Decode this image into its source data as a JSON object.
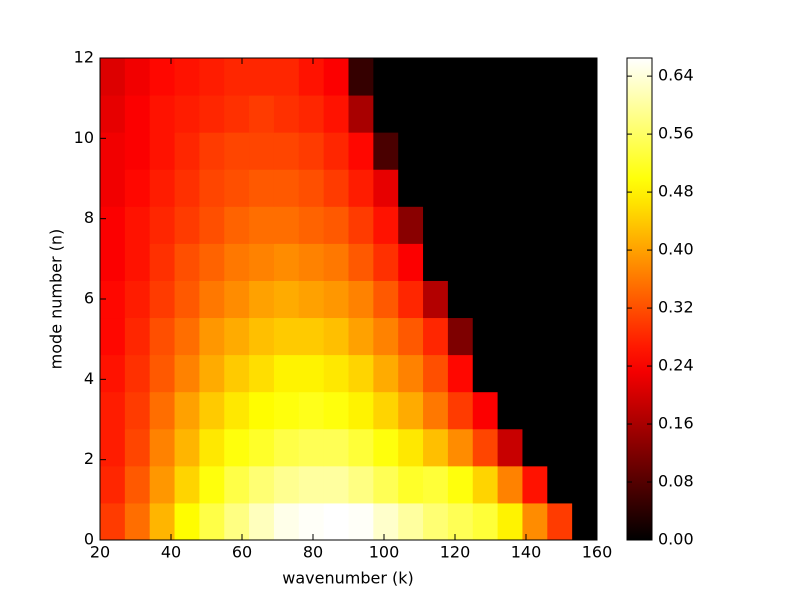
{
  "chart_data": {
    "type": "heatmap",
    "xlabel": "wavenumber (k)",
    "ylabel": "mode number (n)",
    "xlim": [
      20,
      160
    ],
    "ylim": [
      0,
      12
    ],
    "xticks": [
      20,
      40,
      60,
      80,
      100,
      120,
      140,
      160
    ],
    "yticks": [
      0,
      2,
      4,
      6,
      8,
      10,
      12
    ],
    "colormap": "hot",
    "clim": [
      0,
      0.665
    ],
    "cticks": [
      {
        "value": 0,
        "label": "0.00"
      },
      {
        "value": 0.08,
        "label": "0.08"
      },
      {
        "value": 0.16,
        "label": "0.16"
      },
      {
        "value": 0.24,
        "label": "0.24"
      },
      {
        "value": 0.32,
        "label": "0.32"
      },
      {
        "value": 0.4,
        "label": "0.40"
      },
      {
        "value": 0.48,
        "label": "0.48"
      },
      {
        "value": 0.56,
        "label": "0.56"
      },
      {
        "value": 0.64,
        "label": "0.64"
      }
    ],
    "z": [
      [
        0.3,
        0.35,
        0.42,
        0.49,
        0.54,
        0.58,
        0.62,
        0.65,
        0.66,
        0.67,
        0.66,
        0.63,
        0.6,
        0.57,
        0.55,
        0.53,
        0.48,
        0.38,
        0.3,
        0
      ],
      [
        0.28,
        0.33,
        0.39,
        0.45,
        0.5,
        0.54,
        0.57,
        0.59,
        0.6,
        0.6,
        0.58,
        0.55,
        0.52,
        0.53,
        0.5,
        0.45,
        0.37,
        0.26,
        0,
        0
      ],
      [
        0.27,
        0.31,
        0.37,
        0.42,
        0.47,
        0.5,
        0.52,
        0.54,
        0.55,
        0.55,
        0.53,
        0.5,
        0.47,
        0.43,
        0.38,
        0.31,
        0.19,
        0,
        0,
        0
      ],
      [
        0.27,
        0.3,
        0.35,
        0.4,
        0.44,
        0.47,
        0.49,
        0.5,
        0.51,
        0.5,
        0.48,
        0.45,
        0.41,
        0.36,
        0.3,
        0.24,
        0,
        0,
        0,
        0
      ],
      [
        0.26,
        0.29,
        0.33,
        0.37,
        0.41,
        0.44,
        0.46,
        0.48,
        0.48,
        0.47,
        0.45,
        0.41,
        0.37,
        0.32,
        0.25,
        0,
        0,
        0,
        0,
        0
      ],
      [
        0.25,
        0.28,
        0.32,
        0.35,
        0.39,
        0.41,
        0.43,
        0.44,
        0.44,
        0.43,
        0.4,
        0.37,
        0.33,
        0.28,
        0.12,
        0,
        0,
        0,
        0,
        0
      ],
      [
        0.25,
        0.27,
        0.3,
        0.33,
        0.36,
        0.38,
        0.4,
        0.41,
        0.4,
        0.39,
        0.37,
        0.33,
        0.28,
        0.17,
        0,
        0,
        0,
        0,
        0,
        0
      ],
      [
        0.24,
        0.26,
        0.29,
        0.32,
        0.34,
        0.36,
        0.37,
        0.38,
        0.37,
        0.36,
        0.33,
        0.29,
        0.24,
        0,
        0,
        0,
        0,
        0,
        0,
        0
      ],
      [
        0.24,
        0.26,
        0.28,
        0.3,
        0.32,
        0.34,
        0.35,
        0.35,
        0.34,
        0.33,
        0.3,
        0.26,
        0.13,
        0,
        0,
        0,
        0,
        0,
        0,
        0
      ],
      [
        0.23,
        0.25,
        0.27,
        0.29,
        0.31,
        0.32,
        0.33,
        0.33,
        0.32,
        0.3,
        0.27,
        0.22,
        0,
        0,
        0,
        0,
        0,
        0,
        0,
        0
      ],
      [
        0.23,
        0.24,
        0.26,
        0.28,
        0.3,
        0.31,
        0.31,
        0.31,
        0.3,
        0.28,
        0.25,
        0.07,
        0,
        0,
        0,
        0,
        0,
        0,
        0,
        0
      ],
      [
        0.22,
        0.24,
        0.26,
        0.27,
        0.28,
        0.29,
        0.3,
        0.29,
        0.28,
        0.26,
        0.16,
        0,
        0,
        0,
        0,
        0,
        0,
        0,
        0,
        0
      ],
      [
        0.21,
        0.23,
        0.25,
        0.26,
        0.27,
        0.28,
        0.28,
        0.28,
        0.26,
        0.24,
        0.05,
        0,
        0,
        0,
        0,
        0,
        0,
        0,
        0,
        0
      ]
    ]
  }
}
